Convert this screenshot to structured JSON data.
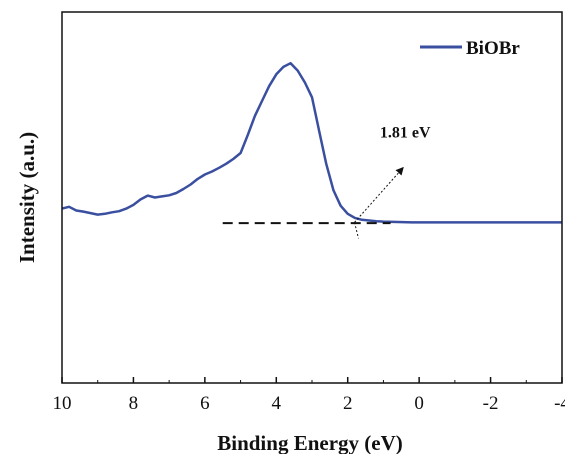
{
  "chart_data": {
    "type": "line",
    "xlabel": "Binding Energy (eV)",
    "ylabel": "Intensity (a.u.)",
    "xlim": [
      10,
      -4
    ],
    "x_reversed": true,
    "ylim": [
      0,
      100
    ],
    "xticks": [
      "10",
      "8",
      "6",
      "4",
      "2",
      "0",
      "-2",
      "-4"
    ],
    "grid": false,
    "legend_position": "top-right",
    "series": [
      {
        "name": "BiOBr",
        "color": "#3a4fa0",
        "x": [
          10,
          9.8,
          9.6,
          9.4,
          9.2,
          9.0,
          8.8,
          8.6,
          8.4,
          8.2,
          8.0,
          7.8,
          7.6,
          7.4,
          7.2,
          7.0,
          6.8,
          6.6,
          6.4,
          6.2,
          6.0,
          5.8,
          5.6,
          5.4,
          5.2,
          5.0,
          4.8,
          4.6,
          4.4,
          4.2,
          4.0,
          3.8,
          3.6,
          3.4,
          3.2,
          3.0,
          2.8,
          2.6,
          2.4,
          2.2,
          2.0,
          1.8,
          1.6,
          1.4,
          1.2,
          1.0,
          0.6,
          0.2,
          -0.2,
          -0.6,
          -1.0,
          -1.5,
          -2.0,
          -2.5,
          -3.0,
          -3.5,
          -4.0
        ],
        "y": [
          47,
          47.5,
          46.5,
          46.2,
          45.8,
          45.4,
          45.6,
          46.0,
          46.3,
          47,
          48,
          49.5,
          50.5,
          50,
          50.3,
          50.6,
          51.2,
          52.3,
          53.5,
          55,
          56.2,
          57,
          58,
          59.1,
          60.4,
          62,
          66.8,
          72,
          76,
          80,
          83.2,
          85.2,
          86.2,
          84.2,
          81,
          77,
          68,
          59,
          52,
          47.8,
          45.6,
          44.5,
          44,
          43.8,
          43.6,
          43.5,
          43.4,
          43.3,
          43.3,
          43.3,
          43.3,
          43.3,
          43.3,
          43.3,
          43.3,
          43.3,
          43.3
        ]
      }
    ],
    "baseline": {
      "y": 43.1,
      "x_from": 5.5,
      "x_to": 0.8
    },
    "annotation": {
      "label": "1.81 eV",
      "x": 1.81,
      "y": 43.3,
      "text_x": 1.1,
      "text_y": 66.2
    }
  }
}
